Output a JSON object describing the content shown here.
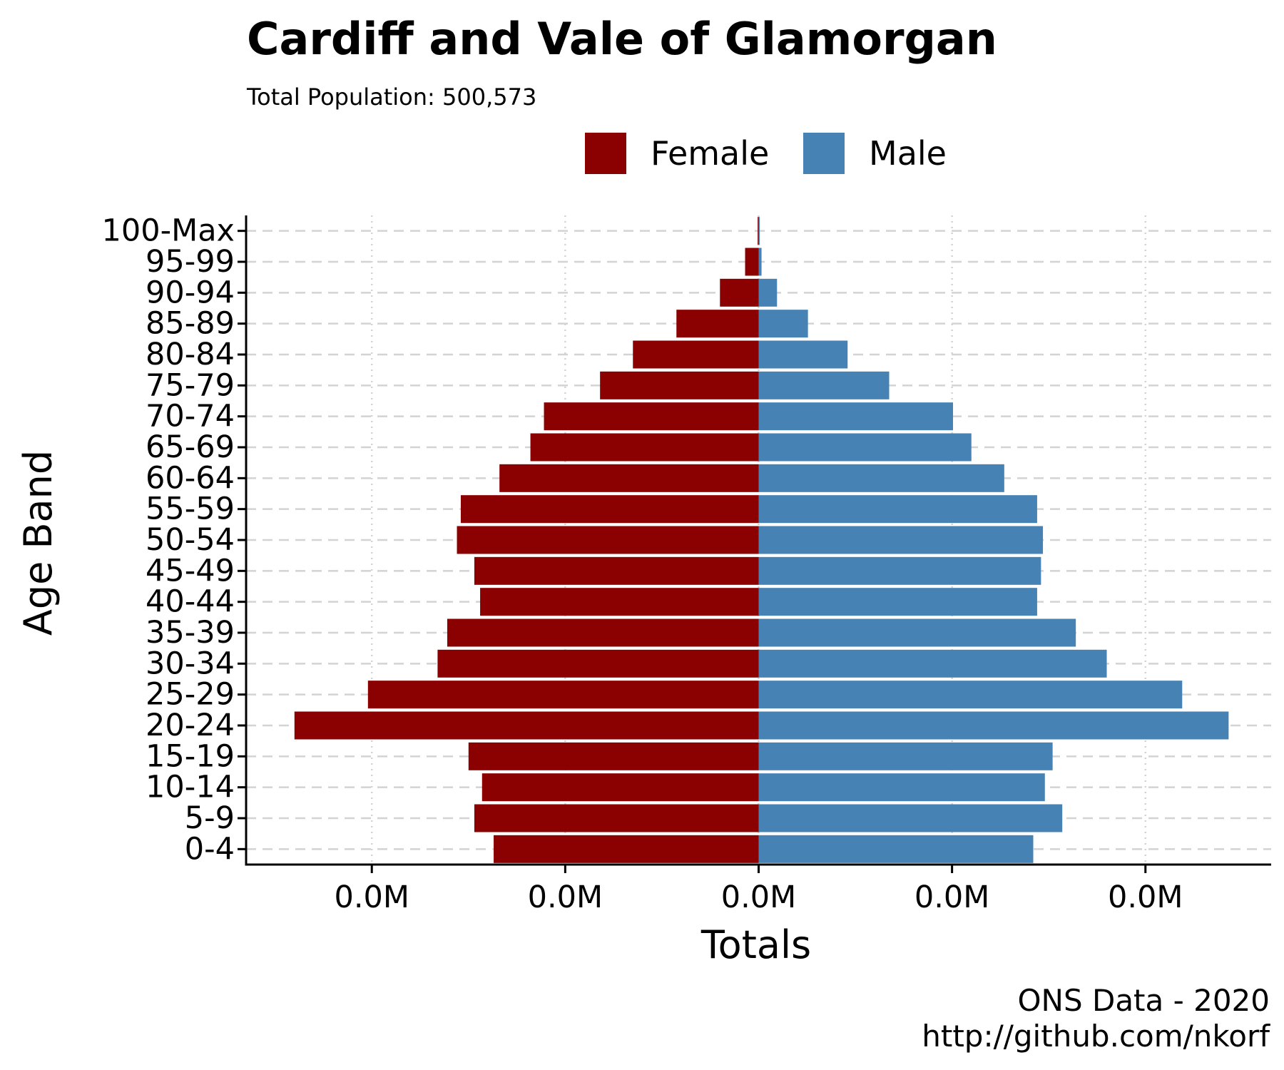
{
  "title": "Cardiff and Vale of Glamorgan",
  "subtitle": "Total Population:  500,573",
  "caption": {
    "line1": "ONS Data - 2020",
    "line2": "http://github.com/nkorf"
  },
  "colors": {
    "female": "#8b0000",
    "male": "#4682b4",
    "grid": "#d3d3d3",
    "axis": "#000000"
  },
  "chart_data": {
    "type": "bar",
    "orientation": "horizontal",
    "title": "Cardiff and Vale of Glamorgan",
    "subtitle": "Total Population:  500,573",
    "xlabel": "Totals",
    "ylabel": "Age Band",
    "x_tick_labels": [
      "0.0M",
      "0.0M",
      "0.0M",
      "0.0M",
      "0.0M"
    ],
    "x_ticks": [
      -20000,
      -10000,
      0,
      10000,
      20000
    ],
    "xlim": [
      -26500,
      26500
    ],
    "grid": true,
    "legend_position": "top",
    "categories": [
      "0-4",
      "5-9",
      "10-14",
      "15-19",
      "20-24",
      "25-29",
      "30-34",
      "35-39",
      "40-44",
      "45-49",
      "50-54",
      "55-59",
      "60-64",
      "65-69",
      "70-74",
      "75-79",
      "80-84",
      "85-89",
      "90-94",
      "95-99",
      "100-Max"
    ],
    "series": [
      {
        "name": "Female",
        "color": "#8b0000",
        "values": [
          13700,
          14700,
          14300,
          15000,
          24000,
          20200,
          16600,
          16100,
          14400,
          14700,
          15600,
          15400,
          13400,
          11800,
          11100,
          8200,
          6500,
          4250,
          2000,
          700,
          50
        ]
      },
      {
        "name": "Male",
        "color": "#4682b4",
        "values": [
          14200,
          15700,
          14800,
          15200,
          24300,
          21900,
          18000,
          16400,
          14400,
          14600,
          14700,
          14400,
          12700,
          11000,
          10050,
          6750,
          4600,
          2550,
          950,
          150,
          30
        ]
      }
    ]
  }
}
